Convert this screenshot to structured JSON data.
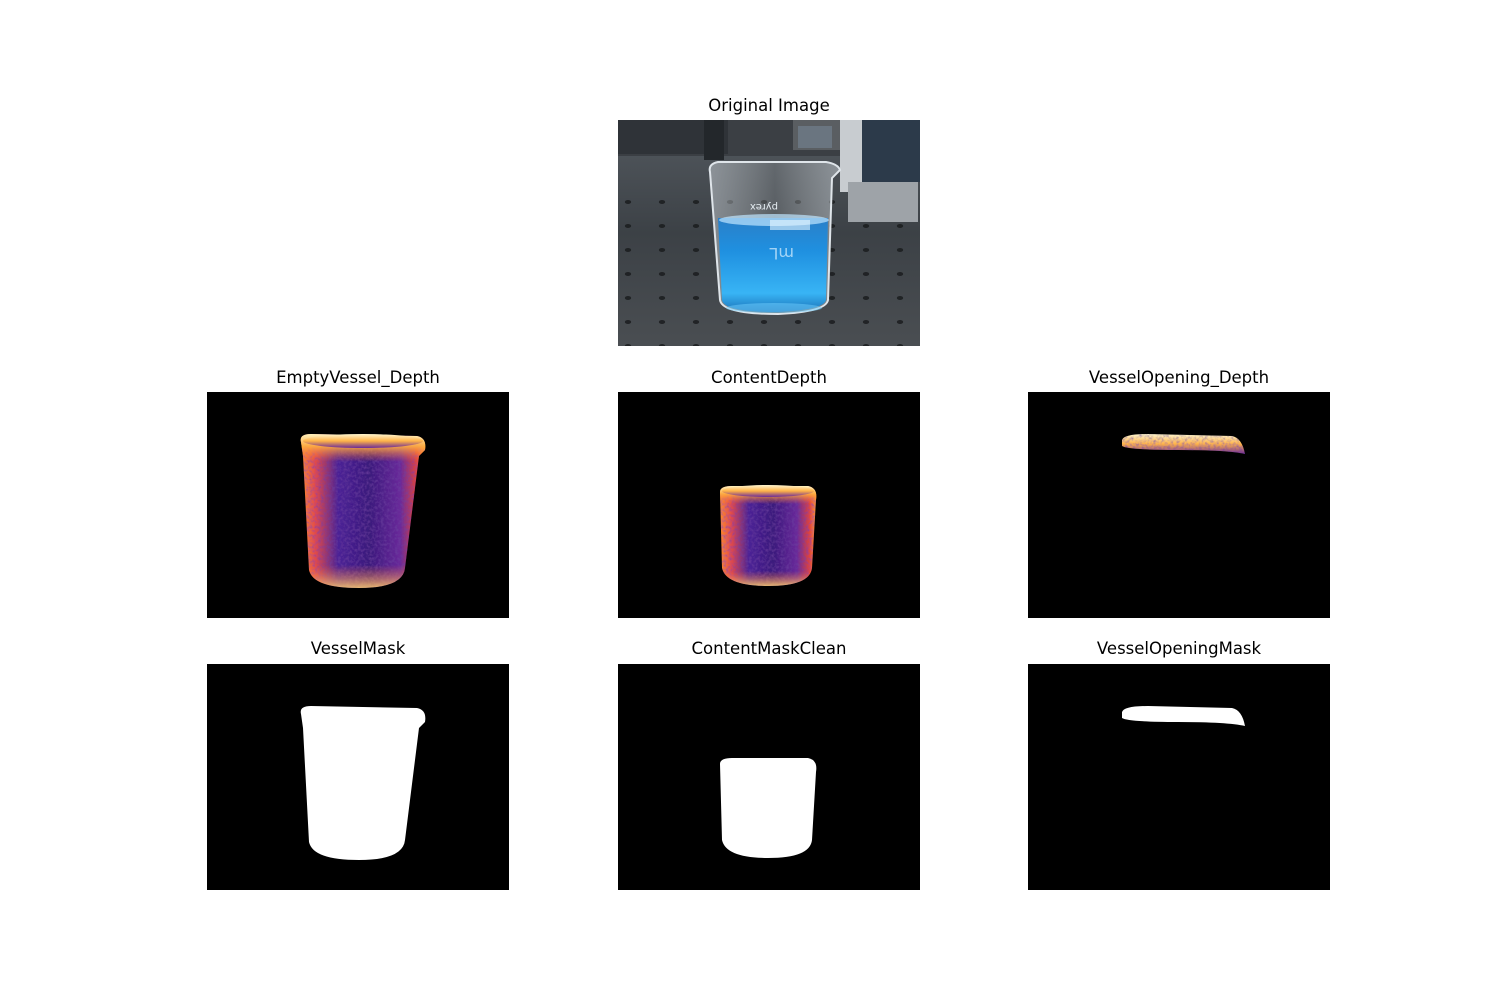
{
  "figure": {
    "original": {
      "title": "Original Image"
    },
    "empty_vessel_depth": {
      "title": "EmptyVessel_Depth"
    },
    "content_depth": {
      "title": "ContentDepth"
    },
    "vessel_opening_depth": {
      "title": "VesselOpening_Depth"
    },
    "vessel_mask": {
      "title": "VesselMask"
    },
    "content_mask_clean": {
      "title": "ContentMaskClean"
    },
    "vessel_opening_mask": {
      "title": "VesselOpeningMask"
    }
  },
  "beaker_text": {
    "brand": "pyrex",
    "mark": "mL"
  },
  "colors": {
    "background": "#ffffff",
    "mask_background": "#000000",
    "mask_foreground": "#ffffff",
    "liquid": "#1e8fd8",
    "depth_low": "#3a1a8c",
    "depth_mid": "#e0443a",
    "depth_high": "#fff2b0"
  }
}
